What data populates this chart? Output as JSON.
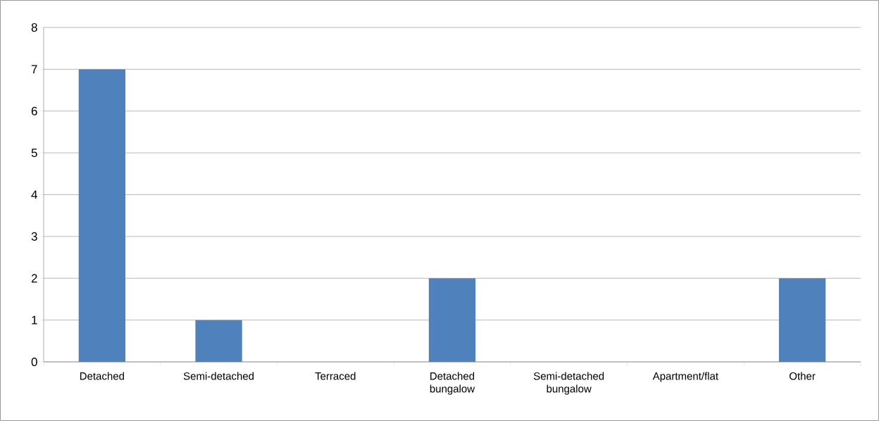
{
  "chart_data": {
    "type": "bar",
    "categories": [
      "Detached",
      "Semi-detached",
      "Terraced",
      "Detached bungalow",
      "Semi-detached bungalow",
      "Apartment/flat",
      "Other"
    ],
    "values": [
      7,
      1,
      0,
      2,
      0,
      0,
      2
    ],
    "color": "#4f81bd",
    "ylim": [
      0,
      8
    ],
    "yticks": [
      0,
      1,
      2,
      3,
      4,
      5,
      6,
      7,
      8
    ],
    "grid": "y"
  }
}
